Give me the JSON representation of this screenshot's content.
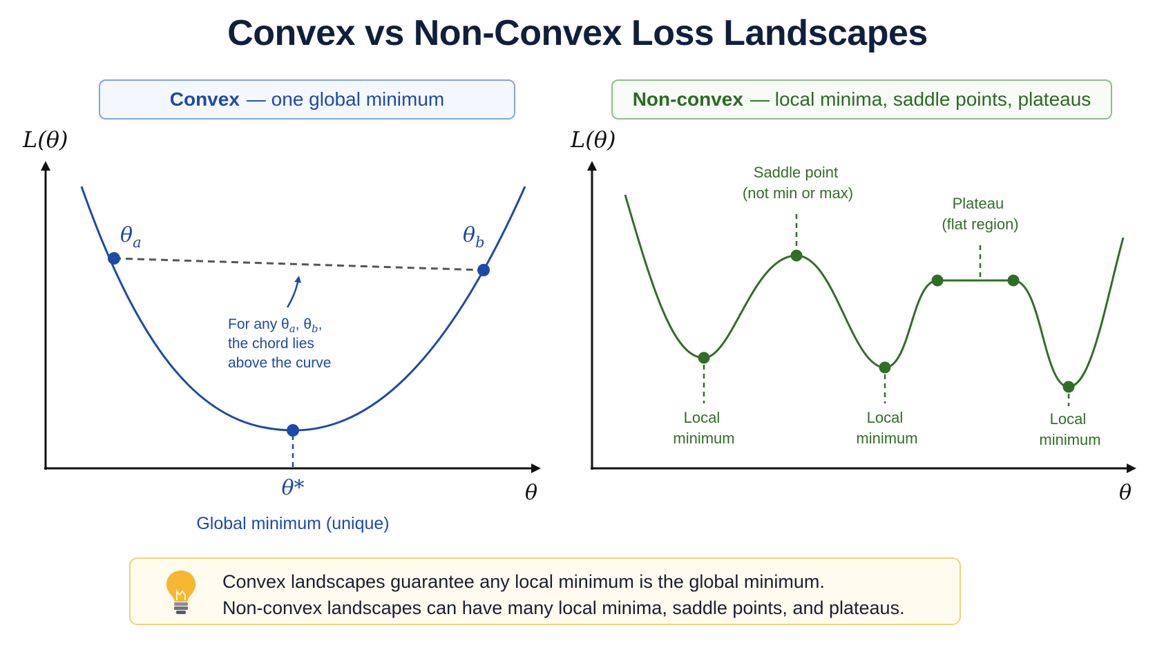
{
  "title": "Convex vs Non-Convex Loss Landscapes",
  "convex": {
    "header_bold": "Convex",
    "header_rest": "— one global minimum",
    "y_axis_label": "L(θ)",
    "x_axis_label": "θ",
    "point_a_label": "θ",
    "point_a_sub": "a",
    "point_b_label": "θ",
    "point_b_sub": "b",
    "min_label": "θ*",
    "min_caption": "Global minimum (unique)",
    "chord_note_line1_prefix": "For any θ",
    "chord_note_sub_a": "a",
    "chord_note_mid": ", θ",
    "chord_note_sub_b": "b",
    "chord_note_end": ",",
    "chord_note_line2": "the chord lies",
    "chord_note_line3": "above the curve",
    "color": "#1c4aa8"
  },
  "nonconvex": {
    "header_bold": "Non-convex",
    "header_rest": "— local minima, saddle points, plateaus",
    "y_axis_label": "L(θ)",
    "x_axis_label": "θ",
    "saddle_line1": "Saddle point",
    "saddle_line2": "(not min or max)",
    "plateau_line1": "Plateau",
    "plateau_line2": "(flat region)",
    "local_min": [
      {
        "line1": "Local",
        "line2": "minimum"
      },
      {
        "line1": "Local",
        "line2": "minimum"
      },
      {
        "line1": "Local",
        "line2": "minimum"
      }
    ],
    "color": "#2f6f25"
  },
  "tip": {
    "icon": "lightbulb-icon",
    "line1": "Convex landscapes guarantee any local minimum is the global minimum.",
    "line2": "Non-convex landscapes can have many local minima, saddle points, and plateaus."
  }
}
